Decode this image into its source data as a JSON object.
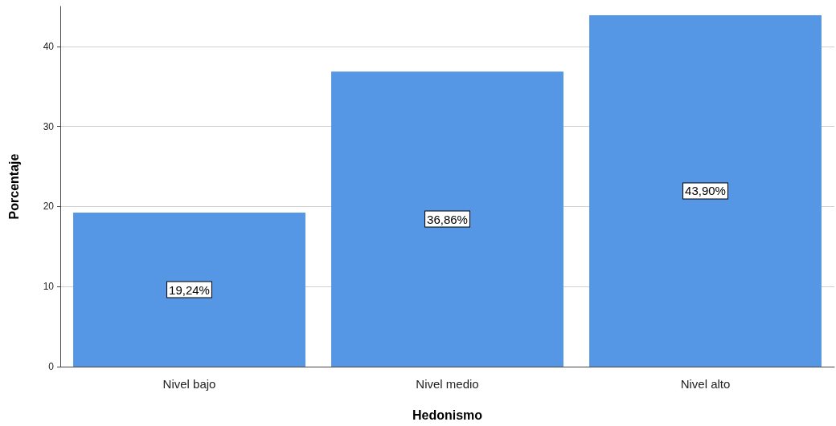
{
  "chart_data": {
    "type": "bar",
    "xlabel": "Hedonismo",
    "ylabel": "Porcentaje",
    "categories": [
      "Nivel bajo",
      "Nivel medio",
      "Nivel alto"
    ],
    "values": [
      19.24,
      36.86,
      43.9
    ],
    "value_labels": [
      "19,24%",
      "36,86%",
      "43,90%"
    ],
    "color": "#5596e5",
    "ylim": [
      0,
      45
    ],
    "yticks": [
      0,
      10,
      20,
      30,
      40
    ],
    "grid": "y"
  }
}
